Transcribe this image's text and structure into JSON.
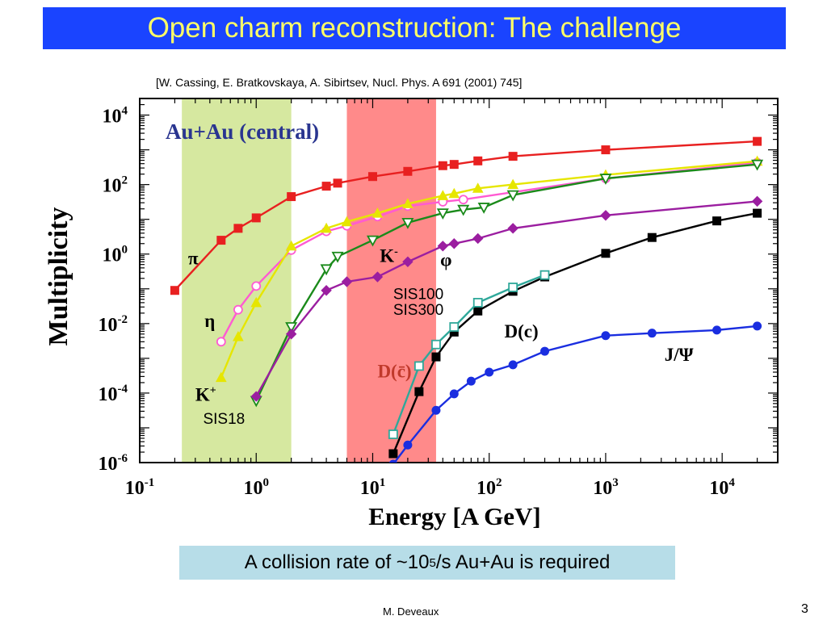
{
  "slide": {
    "title": "Open charm reconstruction: The challenge",
    "citation": "[W. Cassing, E. Bratkovskaya, A. Sibirtsev, Nucl. Phys. A 691 (2001) 745]",
    "callout_prefix": "A collision rate of ~10",
    "callout_sup": "5",
    "callout_suffix": "/s Au+Au is required",
    "author": "M. Deveaux",
    "page": "3"
  },
  "colors": {
    "title_bg": "#1a44ff",
    "title_text": "#ffff66",
    "callout_bg": "#b7dde8",
    "band_sis18": "#d6e8a0",
    "band_sis100": "#ff8a8a"
  },
  "chart_data": {
    "type": "line",
    "xscale": "log",
    "yscale": "log",
    "xlim": [
      0.1,
      30000
    ],
    "ylim": [
      1e-06,
      30000
    ],
    "xlabel": "Energy [A GeV]",
    "ylabel": "Multiplicity",
    "inset_title": "Au+Au (central)",
    "x_ticks": [
      {
        "v": 0.1,
        "base": "10",
        "exp": "-1"
      },
      {
        "v": 1,
        "base": "10",
        "exp": "0"
      },
      {
        "v": 10,
        "base": "10",
        "exp": "1"
      },
      {
        "v": 100,
        "base": "10",
        "exp": "2"
      },
      {
        "v": 1000,
        "base": "10",
        "exp": "3"
      },
      {
        "v": 10000,
        "base": "10",
        "exp": "4"
      }
    ],
    "y_ticks": [
      {
        "v": 1e-06,
        "base": "10",
        "exp": "-6"
      },
      {
        "v": 0.0001,
        "base": "10",
        "exp": "-4"
      },
      {
        "v": 0.01,
        "base": "10",
        "exp": "-2"
      },
      {
        "v": 1,
        "base": "10",
        "exp": "0"
      },
      {
        "v": 100,
        "base": "10",
        "exp": "2"
      },
      {
        "v": 10000,
        "base": "10",
        "exp": "4"
      }
    ],
    "bands": [
      {
        "from": 0.23,
        "to": 2.0,
        "color": "#d6e8a0",
        "label": "SIS18"
      },
      {
        "from": 6.0,
        "to": 35,
        "color": "#ff8a8a",
        "label": "SIS100\nSIS300"
      }
    ],
    "series": [
      {
        "name": "π",
        "color": "#e82020",
        "marker": "square",
        "filled": true,
        "x": [
          0.2,
          0.5,
          0.7,
          1.0,
          2.0,
          4.0,
          5.0,
          10,
          20,
          40,
          50,
          80,
          160,
          1000,
          20000
        ],
        "y": [
          0.09,
          2.5,
          5.5,
          11,
          45,
          90,
          110,
          170,
          240,
          350,
          380,
          480,
          650,
          1000,
          1750
        ]
      },
      {
        "name": "η",
        "color": "#ff5ad2",
        "marker": "circle",
        "filled": false,
        "x": [
          0.5,
          0.7,
          1.0,
          2.0,
          4.0,
          6.0,
          11,
          20,
          40,
          60,
          1000,
          20000
        ],
        "y": [
          0.003,
          0.025,
          0.12,
          1.3,
          4.5,
          6.5,
          12,
          24,
          32,
          37,
          150,
          430
        ]
      },
      {
        "name": "K+",
        "color": "#e6e600",
        "marker": "triangle-up",
        "filled": true,
        "x": [
          0.5,
          0.7,
          1.0,
          2.0,
          4.0,
          6.0,
          11,
          20,
          40,
          50,
          80,
          160,
          1000,
          20000
        ],
        "y": [
          0.00028,
          0.0042,
          0.04,
          1.7,
          5.5,
          8.5,
          15,
          28,
          48,
          55,
          78,
          100,
          190,
          470
        ]
      },
      {
        "name": "K-",
        "color": "#1a8a1a",
        "marker": "triangle-down",
        "filled": false,
        "x": [
          1.0,
          2.0,
          4.0,
          5.0,
          10,
          20,
          40,
          60,
          90,
          160,
          1000,
          20000
        ],
        "y": [
          6e-05,
          0.008,
          0.37,
          0.85,
          2.5,
          8.0,
          15,
          19,
          22,
          50,
          150,
          380
        ]
      },
      {
        "name": "φ",
        "color": "#9b1ea0",
        "marker": "diamond",
        "filled": true,
        "x": [
          1.0,
          2.0,
          4.0,
          6.0,
          11,
          20,
          40,
          50,
          80,
          160,
          1000,
          20000
        ],
        "y": [
          8e-05,
          0.005,
          0.09,
          0.16,
          0.22,
          0.6,
          1.7,
          2.0,
          2.8,
          5.5,
          13,
          33
        ]
      },
      {
        "name": "D(c)",
        "color": "#000000",
        "marker": "square",
        "filled": true,
        "x": [
          15,
          25,
          35,
          50,
          80,
          160,
          300,
          1000,
          2500,
          9000,
          20000
        ],
        "y": [
          1.8e-06,
          0.00011,
          0.0011,
          0.0057,
          0.023,
          0.085,
          0.22,
          1.05,
          3.0,
          9.0,
          15
        ]
      },
      {
        "name": "D(c̄)",
        "color": "#2fa89a",
        "marker": "square",
        "filled": false,
        "x": [
          15,
          25,
          35,
          50,
          80,
          160,
          300
        ],
        "y": [
          6.5e-06,
          0.0006,
          0.0025,
          0.008,
          0.04,
          0.11,
          0.25
        ]
      },
      {
        "name": "J/Ψ",
        "color": "#1a2ee0",
        "marker": "circle",
        "filled": true,
        "x": [
          15,
          20,
          35,
          50,
          70,
          100,
          160,
          300,
          1000,
          2500,
          9000,
          20000
        ],
        "y": [
          9e-07,
          3.2e-06,
          3.2e-05,
          9.5e-05,
          0.00022,
          0.0004,
          0.00065,
          0.0016,
          0.0045,
          0.0053,
          0.0065,
          0.0085
        ]
      }
    ],
    "annotations": [
      {
        "text": "π",
        "x": 0.26,
        "y": 0.5,
        "color": "#000000"
      },
      {
        "text": "η",
        "x": 0.36,
        "y": 0.008,
        "color": "#000000"
      },
      {
        "text": "K",
        "sup": "+",
        "x": 0.3,
        "y": 6e-05,
        "color": "#000000"
      },
      {
        "text": "SIS18",
        "x": 0.35,
        "y": 1.3e-05,
        "color": "#000000",
        "sans": true
      },
      {
        "text": "K",
        "sup": "-",
        "x": 11.5,
        "y": 0.6,
        "color": "#000000"
      },
      {
        "text": "φ",
        "x": 38,
        "y": 0.45,
        "color": "#000000"
      },
      {
        "text": "SIS100",
        "x": 15,
        "y": 0.05,
        "color": "#000000",
        "sans": true
      },
      {
        "text": "SIS300",
        "x": 15,
        "y": 0.018,
        "color": "#000000",
        "sans": true
      },
      {
        "text": "D(c)",
        "x": 135,
        "y": 0.004,
        "color": "#000000"
      },
      {
        "text": "D(c̄)",
        "x": 11,
        "y": 0.00028,
        "color": "#c0392b"
      },
      {
        "text": "J/Ψ",
        "x": 3200,
        "y": 0.00085,
        "color": "#000000"
      }
    ]
  }
}
